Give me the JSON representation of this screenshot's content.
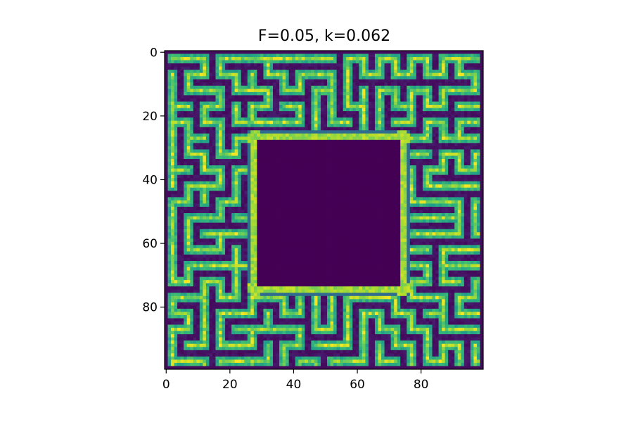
{
  "chart_data": {
    "type": "heatmap",
    "title": "F=0.05, k=0.062",
    "xlabel": "",
    "ylabel": "",
    "grid_size": [
      100,
      100
    ],
    "xlim": [
      -0.5,
      99.5
    ],
    "ylim": [
      99.5,
      -0.5
    ],
    "x_ticks": [
      0,
      20,
      40,
      60,
      80
    ],
    "y_ticks": [
      0,
      20,
      40,
      60,
      80
    ],
    "colormap": "viridis",
    "value_range": [
      0,
      1
    ],
    "central_region": {
      "x": [
        29,
        73
      ],
      "y": [
        28,
        73
      ],
      "value": 0.0
    },
    "background_color": "#440154",
    "stripe_color": "#7ad151",
    "stripe_core_color": "#b5de2b"
  }
}
